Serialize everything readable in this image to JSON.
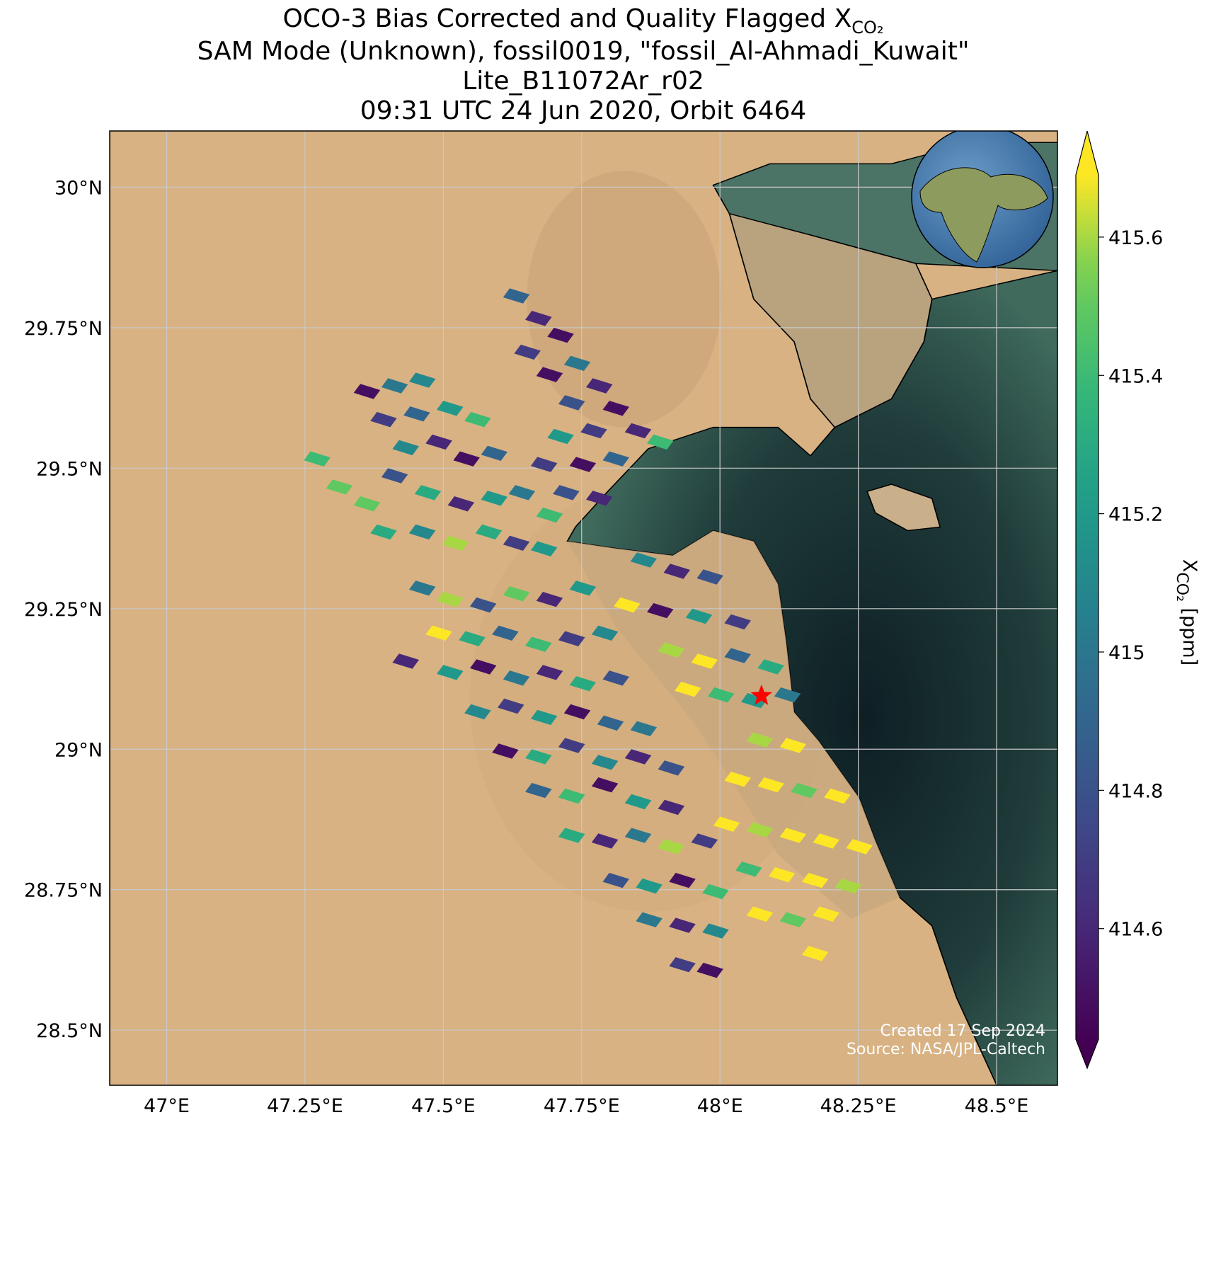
{
  "chart_data": {
    "type": "footprint-map",
    "title": [
      {
        "text": "OCO-3 Bias Corrected and Quality Flagged X",
        "subscript": "CO₂"
      },
      "SAM Mode (Unknown), fossil0019, \"fossil_Al-Ahmadi_Kuwait\"",
      "Lite_B11072Ar_r02",
      "09:31 UTC 24 Jun 2020, Orbit 6464"
    ],
    "xlim": [
      46.897,
      48.61
    ],
    "ylim": [
      28.402,
      30.1
    ],
    "xticks": [
      {
        "value": 47,
        "label": "47°E"
      },
      {
        "value": 47.25,
        "label": "47.25°E"
      },
      {
        "value": 47.5,
        "label": "47.5°E"
      },
      {
        "value": 47.75,
        "label": "47.75°E"
      },
      {
        "value": 48,
        "label": "48°E"
      },
      {
        "value": 48.25,
        "label": "48.25°E"
      },
      {
        "value": 48.5,
        "label": "48.5°E"
      }
    ],
    "yticks": [
      {
        "value": 28.5,
        "label": "28.5°N"
      },
      {
        "value": 28.75,
        "label": "28.75°N"
      },
      {
        "value": 29,
        "label": "29°N"
      },
      {
        "value": 29.25,
        "label": "29.25°N"
      },
      {
        "value": 29.5,
        "label": "29.5°N"
      },
      {
        "value": 29.75,
        "label": "29.75°N"
      },
      {
        "value": 30,
        "label": "30°N"
      }
    ],
    "grid": true,
    "colormap": "viridis",
    "clim": [
      414.44,
      415.69
    ],
    "cticks": [
      414.6,
      414.8,
      415.0,
      415.2,
      415.4,
      415.6
    ],
    "colorbar_label": {
      "text": "X",
      "subscript": "CO₂",
      "suffix": " [ppm]"
    },
    "target": {
      "lon": 48.075,
      "lat": 29.095,
      "color": "#ff0000"
    },
    "credits": [
      "Created 17 Sep 2024",
      "Source: NASA/JPL-Caltech"
    ],
    "soundings": {
      "lon": [
        47.62,
        47.66,
        47.7,
        47.64,
        47.68,
        47.73,
        47.77,
        47.72,
        47.8,
        47.76,
        47.84,
        47.88,
        47.7,
        47.67,
        47.74,
        47.8,
        47.71,
        47.77,
        47.35,
        47.4,
        47.45,
        47.38,
        47.44,
        47.5,
        47.55,
        47.42,
        47.48,
        47.53,
        47.58,
        47.26,
        47.3,
        47.35,
        47.38,
        47.4,
        47.46,
        47.52,
        47.58,
        47.63,
        47.68,
        47.45,
        47.51,
        47.57,
        47.62,
        47.67,
        47.45,
        47.5,
        47.56,
        47.62,
        47.68,
        47.74,
        47.48,
        47.54,
        47.6,
        47.66,
        47.72,
        47.78,
        47.42,
        47.5,
        47.56,
        47.62,
        47.68,
        47.74,
        47.8,
        47.55,
        47.61,
        47.67,
        47.73,
        47.79,
        47.85,
        47.6,
        47.66,
        47.72,
        47.78,
        47.84,
        47.9,
        47.66,
        47.72,
        47.78,
        47.84,
        47.9,
        47.72,
        47.78,
        47.84,
        47.9,
        47.96,
        47.8,
        47.86,
        47.92,
        47.98,
        47.86,
        47.92,
        47.98,
        47.92,
        47.97,
        47.85,
        47.91,
        47.97,
        47.82,
        47.88,
        47.95,
        48.02,
        47.9,
        47.96,
        48.02,
        48.08,
        47.93,
        47.99,
        48.05,
        48.11,
        48.06,
        48.12,
        48.02,
        48.08,
        48.14,
        48.2,
        48.0,
        48.06,
        48.12,
        48.18,
        48.24,
        48.04,
        48.1,
        48.16,
        48.22,
        48.06,
        48.12,
        48.18,
        48.16
      ],
      "lat": [
        29.82,
        29.78,
        29.75,
        29.72,
        29.68,
        29.7,
        29.66,
        29.63,
        29.62,
        29.58,
        29.58,
        29.56,
        29.57,
        29.52,
        29.52,
        29.53,
        29.47,
        29.46,
        29.65,
        29.66,
        29.67,
        29.6,
        29.61,
        29.62,
        29.6,
        29.55,
        29.56,
        29.53,
        29.54,
        29.53,
        29.48,
        29.45,
        29.4,
        29.5,
        29.47,
        29.45,
        29.46,
        29.47,
        29.43,
        29.4,
        29.38,
        29.4,
        29.38,
        29.37,
        29.3,
        29.28,
        29.27,
        29.29,
        29.28,
        29.3,
        29.22,
        29.21,
        29.22,
        29.2,
        29.21,
        29.22,
        29.17,
        29.15,
        29.16,
        29.14,
        29.15,
        29.13,
        29.14,
        29.08,
        29.09,
        29.07,
        29.08,
        29.06,
        29.05,
        29.01,
        29.0,
        29.02,
        28.99,
        29.0,
        28.98,
        28.94,
        28.93,
        28.95,
        28.92,
        28.91,
        28.86,
        28.85,
        28.86,
        28.84,
        28.85,
        28.78,
        28.77,
        28.78,
        28.76,
        28.71,
        28.7,
        28.69,
        28.63,
        28.62,
        29.35,
        29.33,
        29.32,
        29.27,
        29.26,
        29.25,
        29.24,
        29.19,
        29.17,
        29.18,
        29.16,
        29.12,
        29.11,
        29.1,
        29.11,
        29.03,
        29.02,
        28.96,
        28.95,
        28.94,
        28.93,
        28.88,
        28.87,
        28.86,
        28.85,
        28.84,
        28.8,
        28.79,
        28.78,
        28.77,
        28.72,
        28.71,
        28.72,
        28.65
      ],
      "xco2": [
        414.9,
        414.6,
        414.5,
        414.7,
        414.5,
        415.0,
        414.6,
        414.8,
        414.5,
        414.7,
        414.6,
        415.4,
        415.2,
        414.7,
        414.5,
        414.9,
        414.8,
        414.6,
        414.5,
        415.0,
        415.1,
        414.7,
        414.9,
        415.2,
        415.4,
        415.1,
        414.6,
        414.5,
        414.9,
        415.4,
        415.5,
        415.5,
        415.3,
        414.8,
        415.3,
        414.6,
        415.2,
        415.0,
        415.4,
        415.1,
        415.6,
        415.3,
        414.7,
        415.2,
        415.0,
        415.6,
        414.8,
        415.5,
        414.6,
        415.2,
        415.7,
        415.3,
        414.9,
        415.4,
        414.7,
        415.1,
        414.6,
        415.2,
        414.5,
        415.0,
        414.6,
        415.3,
        414.8,
        415.1,
        414.7,
        415.2,
        414.5,
        414.9,
        415.0,
        414.5,
        415.3,
        414.7,
        415.1,
        414.6,
        414.8,
        414.9,
        415.4,
        414.5,
        415.2,
        414.6,
        415.3,
        414.6,
        415.0,
        415.6,
        414.7,
        414.8,
        415.2,
        414.5,
        415.4,
        415.0,
        414.6,
        415.1,
        414.7,
        414.5,
        415.1,
        414.6,
        414.8,
        415.7,
        414.5,
        415.2,
        414.7,
        415.6,
        415.7,
        414.9,
        415.3,
        415.7,
        415.4,
        415.2,
        415.0,
        415.6,
        415.7,
        415.7,
        415.7,
        415.5,
        415.7,
        415.7,
        415.6,
        415.7,
        415.7,
        415.7,
        415.4,
        415.7,
        415.7,
        415.6,
        415.7,
        415.5,
        415.7,
        415.7
      ]
    }
  }
}
